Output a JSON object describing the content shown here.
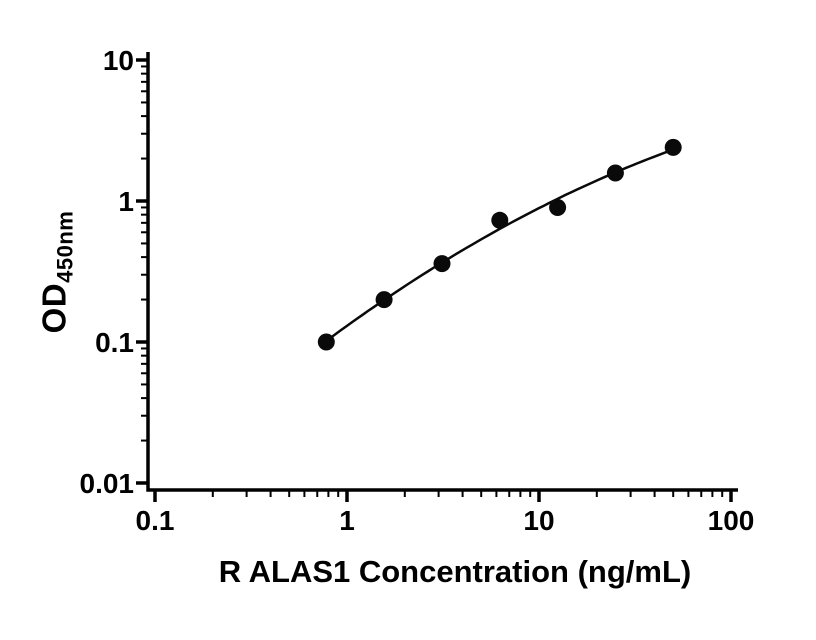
{
  "chart": {
    "ylabel_main": "OD",
    "ylabel_sub": "450nm"
  },
  "chart_data": {
    "type": "scatter",
    "xlabel": "R ALAS1 Concentration (ng/mL)",
    "ylabel": "OD450nm",
    "xscale": "log",
    "yscale": "log",
    "xlim": [
      0.1,
      100
    ],
    "ylim": [
      0.01,
      10
    ],
    "x_ticks": [
      0.1,
      1,
      10,
      100
    ],
    "x_tick_labels": [
      "0.1",
      "1",
      "10",
      "100"
    ],
    "y_ticks": [
      0.01,
      0.1,
      1,
      10
    ],
    "y_tick_labels": [
      "0.01",
      "0.1",
      "1",
      "10"
    ],
    "grid": false,
    "legend": false,
    "axis_color": "#000000",
    "series": [
      {
        "x": [
          0.78,
          1.56,
          3.125,
          6.25,
          12.5,
          25,
          50
        ],
        "y": [
          0.1,
          0.2,
          0.36,
          0.73,
          0.9,
          1.58,
          2.4
        ],
        "marker": "circle",
        "marker_color": "#0a0a0a",
        "line": "fitted-curve",
        "line_color": "#0a0a0a"
      }
    ]
  }
}
